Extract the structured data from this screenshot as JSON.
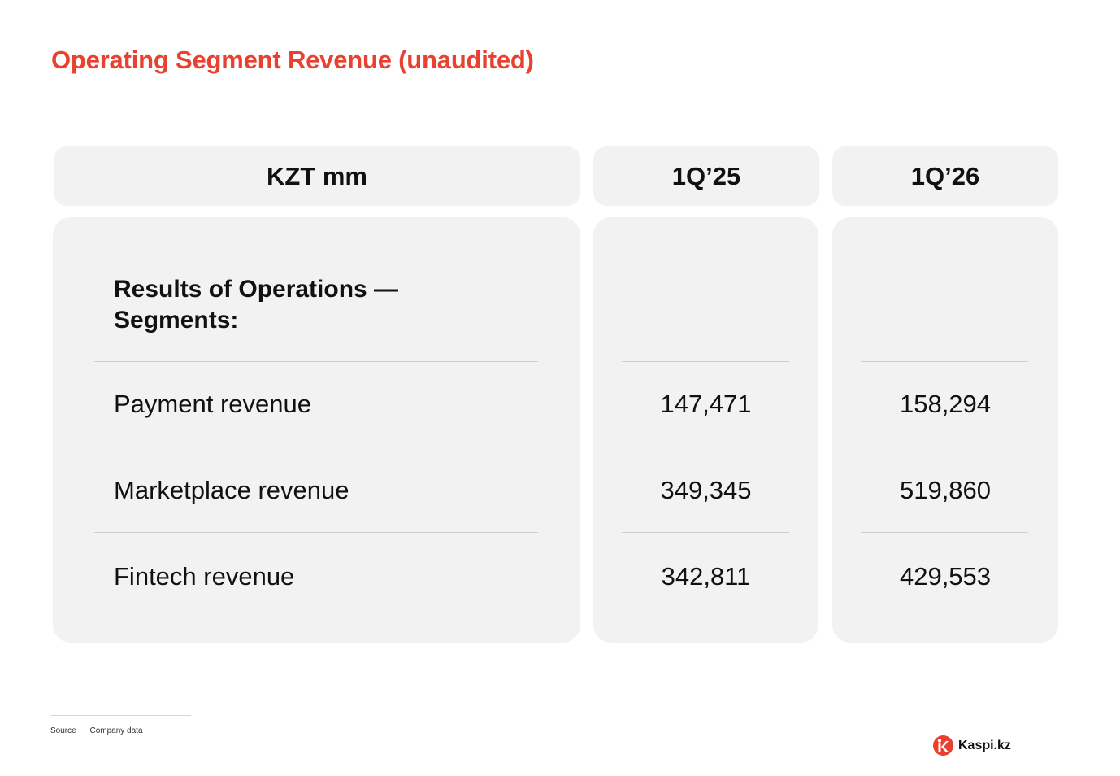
{
  "title": "Operating Segment Revenue (unaudited)",
  "table": {
    "columns": [
      "KZT mm",
      "1Q’25",
      "1Q’26"
    ],
    "section_heading_line1": "Results of Operations —",
    "section_heading_line2": "Segments:",
    "rows": [
      {
        "label": "Payment revenue",
        "q1_25": "147,471",
        "q1_26": "158,294"
      },
      {
        "label": "Marketplace revenue",
        "q1_25": "349,345",
        "q1_26": "519,860"
      },
      {
        "label": "Fintech revenue",
        "q1_25": "342,811",
        "q1_26": "429,553"
      }
    ]
  },
  "footer": {
    "source_label": "Source",
    "source_value": "Company data"
  },
  "brand": {
    "name": "Kaspi.kz",
    "accent_color": "#e8412f",
    "logo_icon": "kaspi-logo-icon"
  }
}
